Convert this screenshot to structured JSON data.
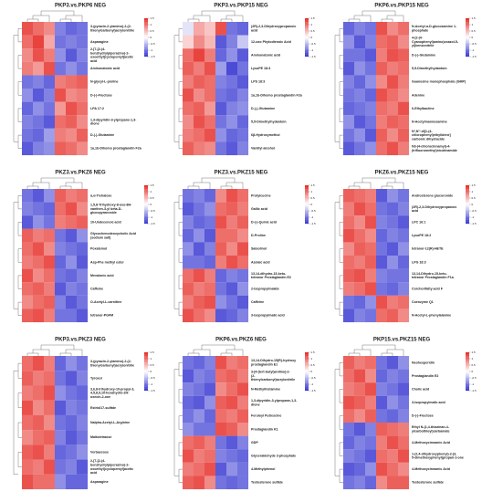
{
  "chart_data": [
    {
      "type": "heatmap",
      "title": "PKP3.vs.PKP6 NEG",
      "categories": [
        "3-(pyrazin-2-ylamino)-2-(2-thienylcarbonyl)acrylonitrile",
        "Asparagine",
        "2-[7-[2-(4-benzhydrylpiperazino)-2-oxoethyl]cyclopentyl]acetic acid",
        "Aminonatonic acid",
        "N-glycyl-L-proline",
        "D-(-)-Fructose",
        "LPA 17:2",
        "1,3-dipyridin-3-ylpropane-1,3-dione",
        "D-(-)-Glutamine",
        "1a,1b-Dihomo prostaglandin F2a"
      ],
      "values": [
        [
          1.2,
          1.0,
          0.8,
          -0.9,
          -1.1,
          -1.0
        ],
        [
          1.0,
          1.3,
          0.6,
          -1.0,
          -0.9,
          -1.0
        ],
        [
          0.8,
          1.2,
          0.9,
          -0.8,
          -1.2,
          -0.9
        ],
        [
          0.9,
          0.7,
          1.2,
          -1.0,
          -0.8,
          -1.0
        ],
        [
          -1.0,
          -0.9,
          -1.1,
          0.9,
          1.0,
          1.1
        ],
        [
          -0.8,
          -1.2,
          -0.9,
          1.2,
          0.8,
          0.9
        ],
        [
          -1.1,
          -0.8,
          -1.0,
          0.7,
          1.2,
          1.0
        ],
        [
          -0.9,
          -1.0,
          -1.2,
          1.0,
          1.1,
          0.8
        ],
        [
          -1.0,
          -1.1,
          -0.7,
          0.9,
          0.8,
          1.1
        ],
        [
          -1.2,
          -0.9,
          -0.8,
          1.1,
          1.0,
          0.8
        ]
      ],
      "zlim": [
        -1.5,
        1.5
      ],
      "zticks": [
        1.5,
        1,
        0.5,
        0,
        -0.5,
        -1,
        -1.5
      ],
      "colormap": [
        "#2f2fd0",
        "#ffffff",
        "#e52620"
      ]
    },
    {
      "type": "heatmap",
      "title": "PKP3.vs.PKP15 NEG",
      "categories": [
        "(2R)-2,3-Dihydroxypropanoic acid",
        "12-oxo Phytodienoic Acid",
        "Aminonatonic acid",
        "LysoPE 18:3",
        "LPS 18:3",
        "1a,1b-Dihomo prostaglandin F2a",
        "D-(-)-Glutamine",
        "5,5-Dimethylhydantoin",
        "6β-Hydroxymethol",
        "Vanillyl alcohol"
      ],
      "values": [
        [
          -0.2,
          0.6,
          0.4,
          1.2,
          -1.0,
          -1.1
        ],
        [
          0.3,
          0.8,
          0.5,
          -1.2,
          -0.9,
          -0.4
        ],
        [
          1.0,
          1.3,
          0.9,
          -1.1,
          -0.8,
          -1.2
        ],
        [
          1.1,
          0.9,
          1.2,
          -0.7,
          -1.3,
          -1.0
        ],
        [
          0.9,
          1.1,
          1.0,
          -0.9,
          -1.0,
          -1.2
        ],
        [
          1.2,
          0.8,
          1.0,
          -1.0,
          -1.1,
          -0.9
        ],
        [
          1.0,
          1.1,
          0.7,
          -1.2,
          -0.9,
          -0.8
        ],
        [
          0.8,
          1.2,
          1.0,
          -1.0,
          -0.8,
          -1.1
        ],
        [
          0.9,
          1.0,
          1.2,
          -0.8,
          -1.1,
          -1.0
        ],
        [
          1.1,
          0.9,
          0.8,
          -1.0,
          -1.2,
          -0.9
        ]
      ],
      "zlim": [
        -1.5,
        1.5
      ],
      "zticks": [
        1.5,
        1,
        0.5,
        0,
        -0.5,
        -1,
        -1.5
      ],
      "colormap": [
        "#2f2fd0",
        "#ffffff",
        "#e52620"
      ]
    },
    {
      "type": "heatmap",
      "title": "PKP6.vs.PKP15 NEG",
      "categories": [
        "N-Acetyl-α-D-glucosamine 1-phosphate",
        "4-(2-(4-Cyanophenyl)amino)oxazol-5-yl)benzonitrile",
        "D-(-)-Glutamine",
        "5,5-Dimethylhydantoin",
        "Guanosine monophosphate (GMP)",
        "Adenine",
        "6-Ethylbactine",
        "N-Acetylmannosamine",
        "N¹,N¹'-di[1-(4-chlorophenyl)ethylidene] carbonic dihydrazide",
        "N3-(4-chlorocinnamyl)-4-(trifluoromethyl)nicotinamide"
      ],
      "values": [
        [
          -1.1,
          -0.9,
          -1.0,
          1.2,
          0.8,
          1.0
        ],
        [
          -0.8,
          -1.2,
          -0.9,
          1.0,
          1.1,
          0.8
        ],
        [
          -1.0,
          -1.0,
          -1.2,
          0.9,
          1.2,
          1.1
        ],
        [
          -1.2,
          -0.8,
          -1.0,
          1.1,
          0.9,
          1.0
        ],
        [
          -0.9,
          -1.1,
          -0.8,
          0.8,
          1.2,
          0.9
        ],
        [
          -1.0,
          -0.9,
          -1.1,
          1.2,
          1.0,
          0.8
        ],
        [
          -1.1,
          -1.0,
          -0.9,
          1.0,
          0.9,
          1.2
        ],
        [
          -0.8,
          -1.2,
          -1.0,
          0.9,
          1.1,
          1.0
        ],
        [
          -1.0,
          -0.8,
          -1.2,
          1.1,
          0.8,
          1.1
        ],
        [
          -1.2,
          -1.0,
          -0.8,
          1.0,
          1.2,
          0.9
        ]
      ],
      "zlim": [
        -1.5,
        1.5
      ],
      "zticks": [
        1.5,
        1,
        0.5,
        0,
        -0.5,
        -1,
        -1.5
      ],
      "colormap": [
        "#2f2fd0",
        "#ffffff",
        "#e52620"
      ]
    },
    {
      "type": "heatmap",
      "title": "PKZ3.vs.PKZ6 NEG",
      "categories": [
        "α,α-Trehalose",
        "1,5,8-Trihydroxy-8-oxo-8H-xanthen-3-yl beta-D-glucopyranoside",
        "10-Undecenoic acid",
        "Glycochenodeoxycholic Acid (sodium salt)",
        "Poxatemol",
        "Asp-Phe methyl ester",
        "Mevalonic acid",
        "Caffeine",
        "O-Acetyl-L-carnitine",
        "tetranor-PGFM"
      ],
      "values": [
        [
          -1.0,
          -1.2,
          -0.8,
          1.1,
          0.9,
          1.0
        ],
        [
          -0.9,
          -1.0,
          -1.1,
          1.0,
          1.2,
          0.8
        ],
        [
          -1.2,
          -0.8,
          -1.0,
          0.9,
          1.0,
          1.1
        ],
        [
          1.1,
          0.9,
          1.0,
          -1.0,
          -1.2,
          -0.8
        ],
        [
          1.0,
          1.2,
          0.8,
          -0.9,
          -1.0,
          -1.1
        ],
        [
          0.9,
          1.0,
          1.2,
          -1.1,
          -0.8,
          -1.2
        ],
        [
          1.2,
          0.8,
          1.0,
          -1.0,
          -1.1,
          -0.9
        ],
        [
          1.0,
          1.1,
          0.9,
          -1.2,
          -0.9,
          -1.0
        ],
        [
          0.8,
          1.0,
          1.1,
          -0.9,
          -1.2,
          -1.0
        ],
        [
          1.1,
          1.2,
          0.9,
          -1.0,
          -1.0,
          -1.2
        ]
      ],
      "zlim": [
        -1.5,
        1.5
      ],
      "zticks": [
        1.5,
        1,
        0.5,
        0,
        -0.5,
        -1,
        -1.5
      ],
      "colormap": [
        "#2f2fd0",
        "#ffffff",
        "#e52620"
      ]
    },
    {
      "type": "heatmap",
      "title": "PKZ3.vs.PKZ15 NEG",
      "categories": [
        "Protylcucine",
        "Gallic acid",
        "D-(-)-Quinic acid",
        "D-Proline",
        "Salsolinol",
        "Azelaic acid",
        "13,14-dihydro-15-keto-tetranor Prostaglandin E2",
        "2-Isopropylmalate",
        "Caffeine",
        "3-Isopropylmalic acid"
      ],
      "values": [
        [
          -1.0,
          -0.9,
          -1.1,
          0.8,
          1.2,
          1.0
        ],
        [
          -1.2,
          -1.0,
          -0.8,
          1.0,
          1.1,
          0.9
        ],
        [
          -0.9,
          -1.1,
          -1.0,
          1.2,
          0.9,
          1.1
        ],
        [
          -1.1,
          -0.8,
          -1.2,
          1.0,
          1.0,
          0.8
        ],
        [
          -0.8,
          -1.2,
          -0.9,
          1.1,
          0.8,
          1.2
        ],
        [
          -1.0,
          -1.0,
          -1.1,
          0.9,
          1.2,
          1.0
        ],
        [
          1.0,
          1.2,
          0.9,
          -1.1,
          -0.9,
          -1.0
        ],
        [
          1.1,
          0.9,
          1.0,
          -1.0,
          -1.2,
          -0.8
        ],
        [
          0.9,
          1.1,
          1.2,
          -0.8,
          -1.0,
          -1.2
        ],
        [
          1.2,
          1.0,
          0.8,
          -1.2,
          -1.1,
          -0.9
        ]
      ],
      "zlim": [
        -1.5,
        1.5
      ],
      "zticks": [
        1.5,
        1,
        0.5,
        0,
        -0.5,
        -1,
        -1.5
      ],
      "colormap": [
        "#2f2fd0",
        "#ffffff",
        "#e52620"
      ]
    },
    {
      "type": "heatmap",
      "title": "PKZ6.vs.PKZ15 NEG",
      "categories": [
        "Androsterone glucuronide",
        "(2R)-2,3-Dihydroxypropanoic acid",
        "LPC 16:1",
        "LysoPE 18:2",
        "tetranor-12(R)-HETE",
        "LPG 18:3",
        "13,14-Dihydro-15-keto-tetranor Prostaglandin F1a",
        "Corchorifatty acid F",
        "Coenzyme Q1",
        "N-Acetyl-L-phenylalanine"
      ],
      "values": [
        [
          1.1,
          1.0,
          0.9,
          -1.2,
          -0.8,
          -1.0
        ],
        [
          0.9,
          1.2,
          1.0,
          -1.0,
          -1.1,
          -0.9
        ],
        [
          1.0,
          0.8,
          1.2,
          -0.9,
          -1.0,
          -1.2
        ],
        [
          1.2,
          1.0,
          0.8,
          -1.1,
          -0.9,
          -1.0
        ],
        [
          0.8,
          1.1,
          1.0,
          -1.0,
          -1.2,
          -0.8
        ],
        [
          1.0,
          0.9,
          1.1,
          -1.2,
          -0.8,
          -1.1
        ],
        [
          1.1,
          1.2,
          0.9,
          -0.9,
          -1.0,
          -1.0
        ],
        [
          0.9,
          1.0,
          1.2,
          -1.0,
          -1.1,
          -0.9
        ],
        [
          -1.0,
          -1.1,
          -0.8,
          1.2,
          0.9,
          1.0
        ],
        [
          -1.2,
          -0.9,
          -1.0,
          1.0,
          1.1,
          0.8
        ]
      ],
      "zlim": [
        -1.5,
        1.5
      ],
      "zticks": [
        1.5,
        1,
        0.5,
        0,
        -0.5,
        -1,
        -1.5
      ],
      "colormap": [
        "#2f2fd0",
        "#ffffff",
        "#e52620"
      ]
    },
    {
      "type": "heatmap",
      "title": "PKP3.vs.PKZ3 NEG",
      "categories": [
        "3-(pyrazin-2-ylamino)-2-(2-thienylcarbonyl)acrylonitrile",
        "Tyrosol",
        "3,6,8-trihydroxy-10-propyl-3,4,5,8,9,10-hexahydro-2H-oxecin-2-one",
        "Estriol17-sulfate",
        "Nalpha-Acetyl-L-Arginine",
        "Maltotetraose",
        "Verbascose",
        "2-[7-[2-(4-benzhydrylpiperazino)-2-oxoethyl]cyclopentyl]acetic acid",
        "Asparagine"
      ],
      "values": [
        [
          1.0,
          1.2,
          0.9,
          -1.1,
          -0.8,
          -1.0
        ],
        [
          1.1,
          0.9,
          1.0,
          -1.0,
          -1.2,
          -0.9
        ],
        [
          0.9,
          1.0,
          1.2,
          -0.8,
          -1.0,
          -1.1
        ],
        [
          1.2,
          0.8,
          1.0,
          -1.2,
          -0.9,
          -1.0
        ],
        [
          1.0,
          1.1,
          0.8,
          -1.0,
          -1.1,
          -0.9
        ],
        [
          0.8,
          1.0,
          1.1,
          -0.9,
          -1.2,
          -1.0
        ],
        [
          1.1,
          1.2,
          0.9,
          -1.1,
          -1.0,
          -0.8
        ],
        [
          1.0,
          0.9,
          1.2,
          -1.0,
          -0.9,
          -1.2
        ],
        [
          1.2,
          1.0,
          1.0,
          -0.8,
          -1.1,
          -1.1
        ]
      ],
      "zlim": [
        -1.5,
        1.5
      ],
      "zticks": [
        1.5,
        1,
        0.5,
        0,
        -0.5,
        -1,
        -1.5
      ],
      "colormap": [
        "#2f2fd0",
        "#ffffff",
        "#e52620"
      ]
    },
    {
      "type": "heatmap",
      "title": "PKP6.vs.PKZ6 NEG",
      "categories": [
        "13,14-Dihydro-15(R)-hydroxy prostaglandin E1",
        "3-[4-(tert-butyl)anilino]-2-(2-thienylcarbonyl)acrylonitrile",
        "N-Methylhistamine",
        "1,3-dipyridin-3-ylpropane-1,3-dione",
        "Feruloyl Putrescine",
        "Prostaglandin K1",
        "GDP",
        "Glyceraldehyde 3-phosphate",
        "4-Methylphenol",
        "Testosterone sulfate"
      ],
      "values": [
        [
          -1.0,
          -1.1,
          -0.9,
          1.2,
          0.9,
          1.0
        ],
        [
          -1.2,
          -0.9,
          -1.0,
          1.0,
          1.1,
          0.9
        ],
        [
          -0.9,
          -1.0,
          -1.2,
          0.8,
          1.0,
          1.2
        ],
        [
          -1.1,
          -1.2,
          -0.8,
          1.1,
          1.2,
          0.9
        ],
        [
          -1.0,
          -0.8,
          -1.1,
          1.0,
          0.9,
          1.1
        ],
        [
          -0.8,
          -1.0,
          -1.0,
          1.2,
          1.1,
          0.8
        ],
        [
          1.0,
          1.1,
          0.9,
          -1.0,
          -1.2,
          -0.9
        ],
        [
          1.2,
          0.9,
          1.0,
          -0.9,
          -1.0,
          -1.1
        ],
        [
          0.9,
          1.0,
          1.2,
          -1.2,
          -0.8,
          -1.0
        ],
        [
          1.1,
          1.2,
          0.8,
          -1.0,
          -1.1,
          -1.0
        ]
      ],
      "zlim": [
        -1.5,
        1.5
      ],
      "zticks": [
        1.5,
        1,
        0.5,
        0,
        -0.5,
        -1,
        -1.5
      ],
      "colormap": [
        "#2f2fd0",
        "#ffffff",
        "#e52620"
      ]
    },
    {
      "type": "heatmap",
      "title": "PKP15.vs.PKZ15 NEG",
      "categories": [
        "Neohesperidin",
        "Prostaglandin E2",
        "Cholic acid",
        "3-Isopropylmalic acid",
        "D-(-)-Fructose",
        "Ethyl N-(1,4-thiazinan-4-ylcarbothioyl)carbamate",
        "4-Methoxycinnamic Acid",
        "1-(2,4-dihydroxyphenyl)-2-(3,5-dimethoxyphenyl)propan-1-one",
        "4-Methoxycinnamic Acid",
        "Testosterone sulfate"
      ],
      "values": [
        [
          1.1,
          0.9,
          1.0,
          -1.0,
          -1.2,
          -0.8
        ],
        [
          1.0,
          1.2,
          0.8,
          -1.1,
          -0.9,
          -1.0
        ],
        [
          0.9,
          1.0,
          1.2,
          -0.9,
          -1.0,
          -1.2
        ],
        [
          1.2,
          1.1,
          0.9,
          -1.2,
          -0.8,
          -1.0
        ],
        [
          1.0,
          0.8,
          1.1,
          -1.0,
          -1.1,
          -0.9
        ],
        [
          -1.0,
          -1.2,
          -0.9,
          1.1,
          1.0,
          0.9
        ],
        [
          -1.1,
          -0.9,
          -1.0,
          0.9,
          1.2,
          1.0
        ],
        [
          -0.9,
          -1.0,
          -1.2,
          1.0,
          0.9,
          1.2
        ],
        [
          -1.2,
          -1.1,
          -0.8,
          1.2,
          1.0,
          0.8
        ],
        [
          -1.0,
          -0.9,
          -1.1,
          0.8,
          1.1,
          1.1
        ]
      ],
      "zlim": [
        -1.5,
        1.5
      ],
      "zticks": [
        1.5,
        1,
        0.5,
        0,
        -0.5,
        -1,
        -1.5
      ],
      "colormap": [
        "#2f2fd0",
        "#ffffff",
        "#e52620"
      ]
    }
  ]
}
